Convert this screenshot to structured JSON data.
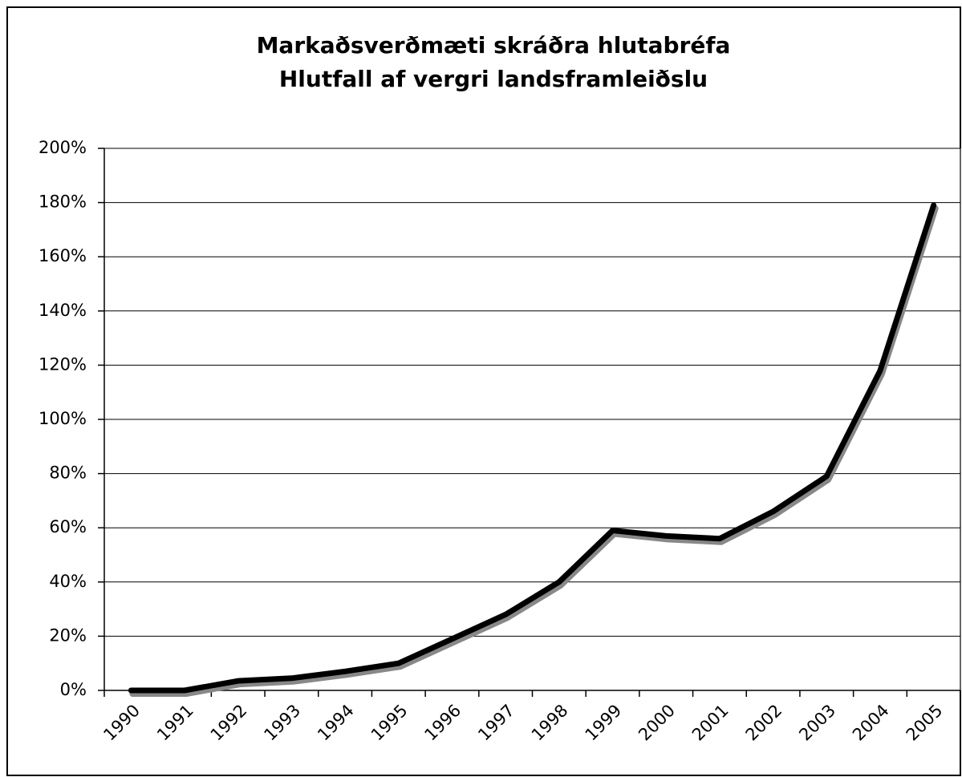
{
  "chart_data": {
    "type": "line",
    "title": "Markaðsverðmæti skráðra hlutabréfa",
    "subtitle": "Hlutfall af vergri landsframleiðslu",
    "categories": [
      "1990",
      "1991",
      "1992",
      "1993",
      "1994",
      "1995",
      "1996",
      "1997",
      "1998",
      "1999",
      "2000",
      "2001",
      "2002",
      "2003",
      "2004",
      "2005"
    ],
    "series": [
      {
        "name": "Markaðsverðmæti",
        "color": "#000000",
        "values": [
          0,
          0,
          3.5,
          4.5,
          7,
          10,
          19,
          28,
          40,
          59,
          57,
          56,
          66,
          79,
          118,
          179
        ]
      }
    ],
    "ylim": [
      0,
      200
    ],
    "yticks": [
      {
        "value": 0,
        "label": "0%"
      },
      {
        "value": 20,
        "label": "20%"
      },
      {
        "value": 40,
        "label": "40%"
      },
      {
        "value": 60,
        "label": "60%"
      },
      {
        "value": 80,
        "label": "80%"
      },
      {
        "value": 100,
        "label": "100%"
      },
      {
        "value": 120,
        "label": "120%"
      },
      {
        "value": 140,
        "label": "140%"
      },
      {
        "value": 160,
        "label": "160%"
      },
      {
        "value": 180,
        "label": "180%"
      },
      {
        "value": 200,
        "label": "200%"
      }
    ],
    "grid": true
  }
}
